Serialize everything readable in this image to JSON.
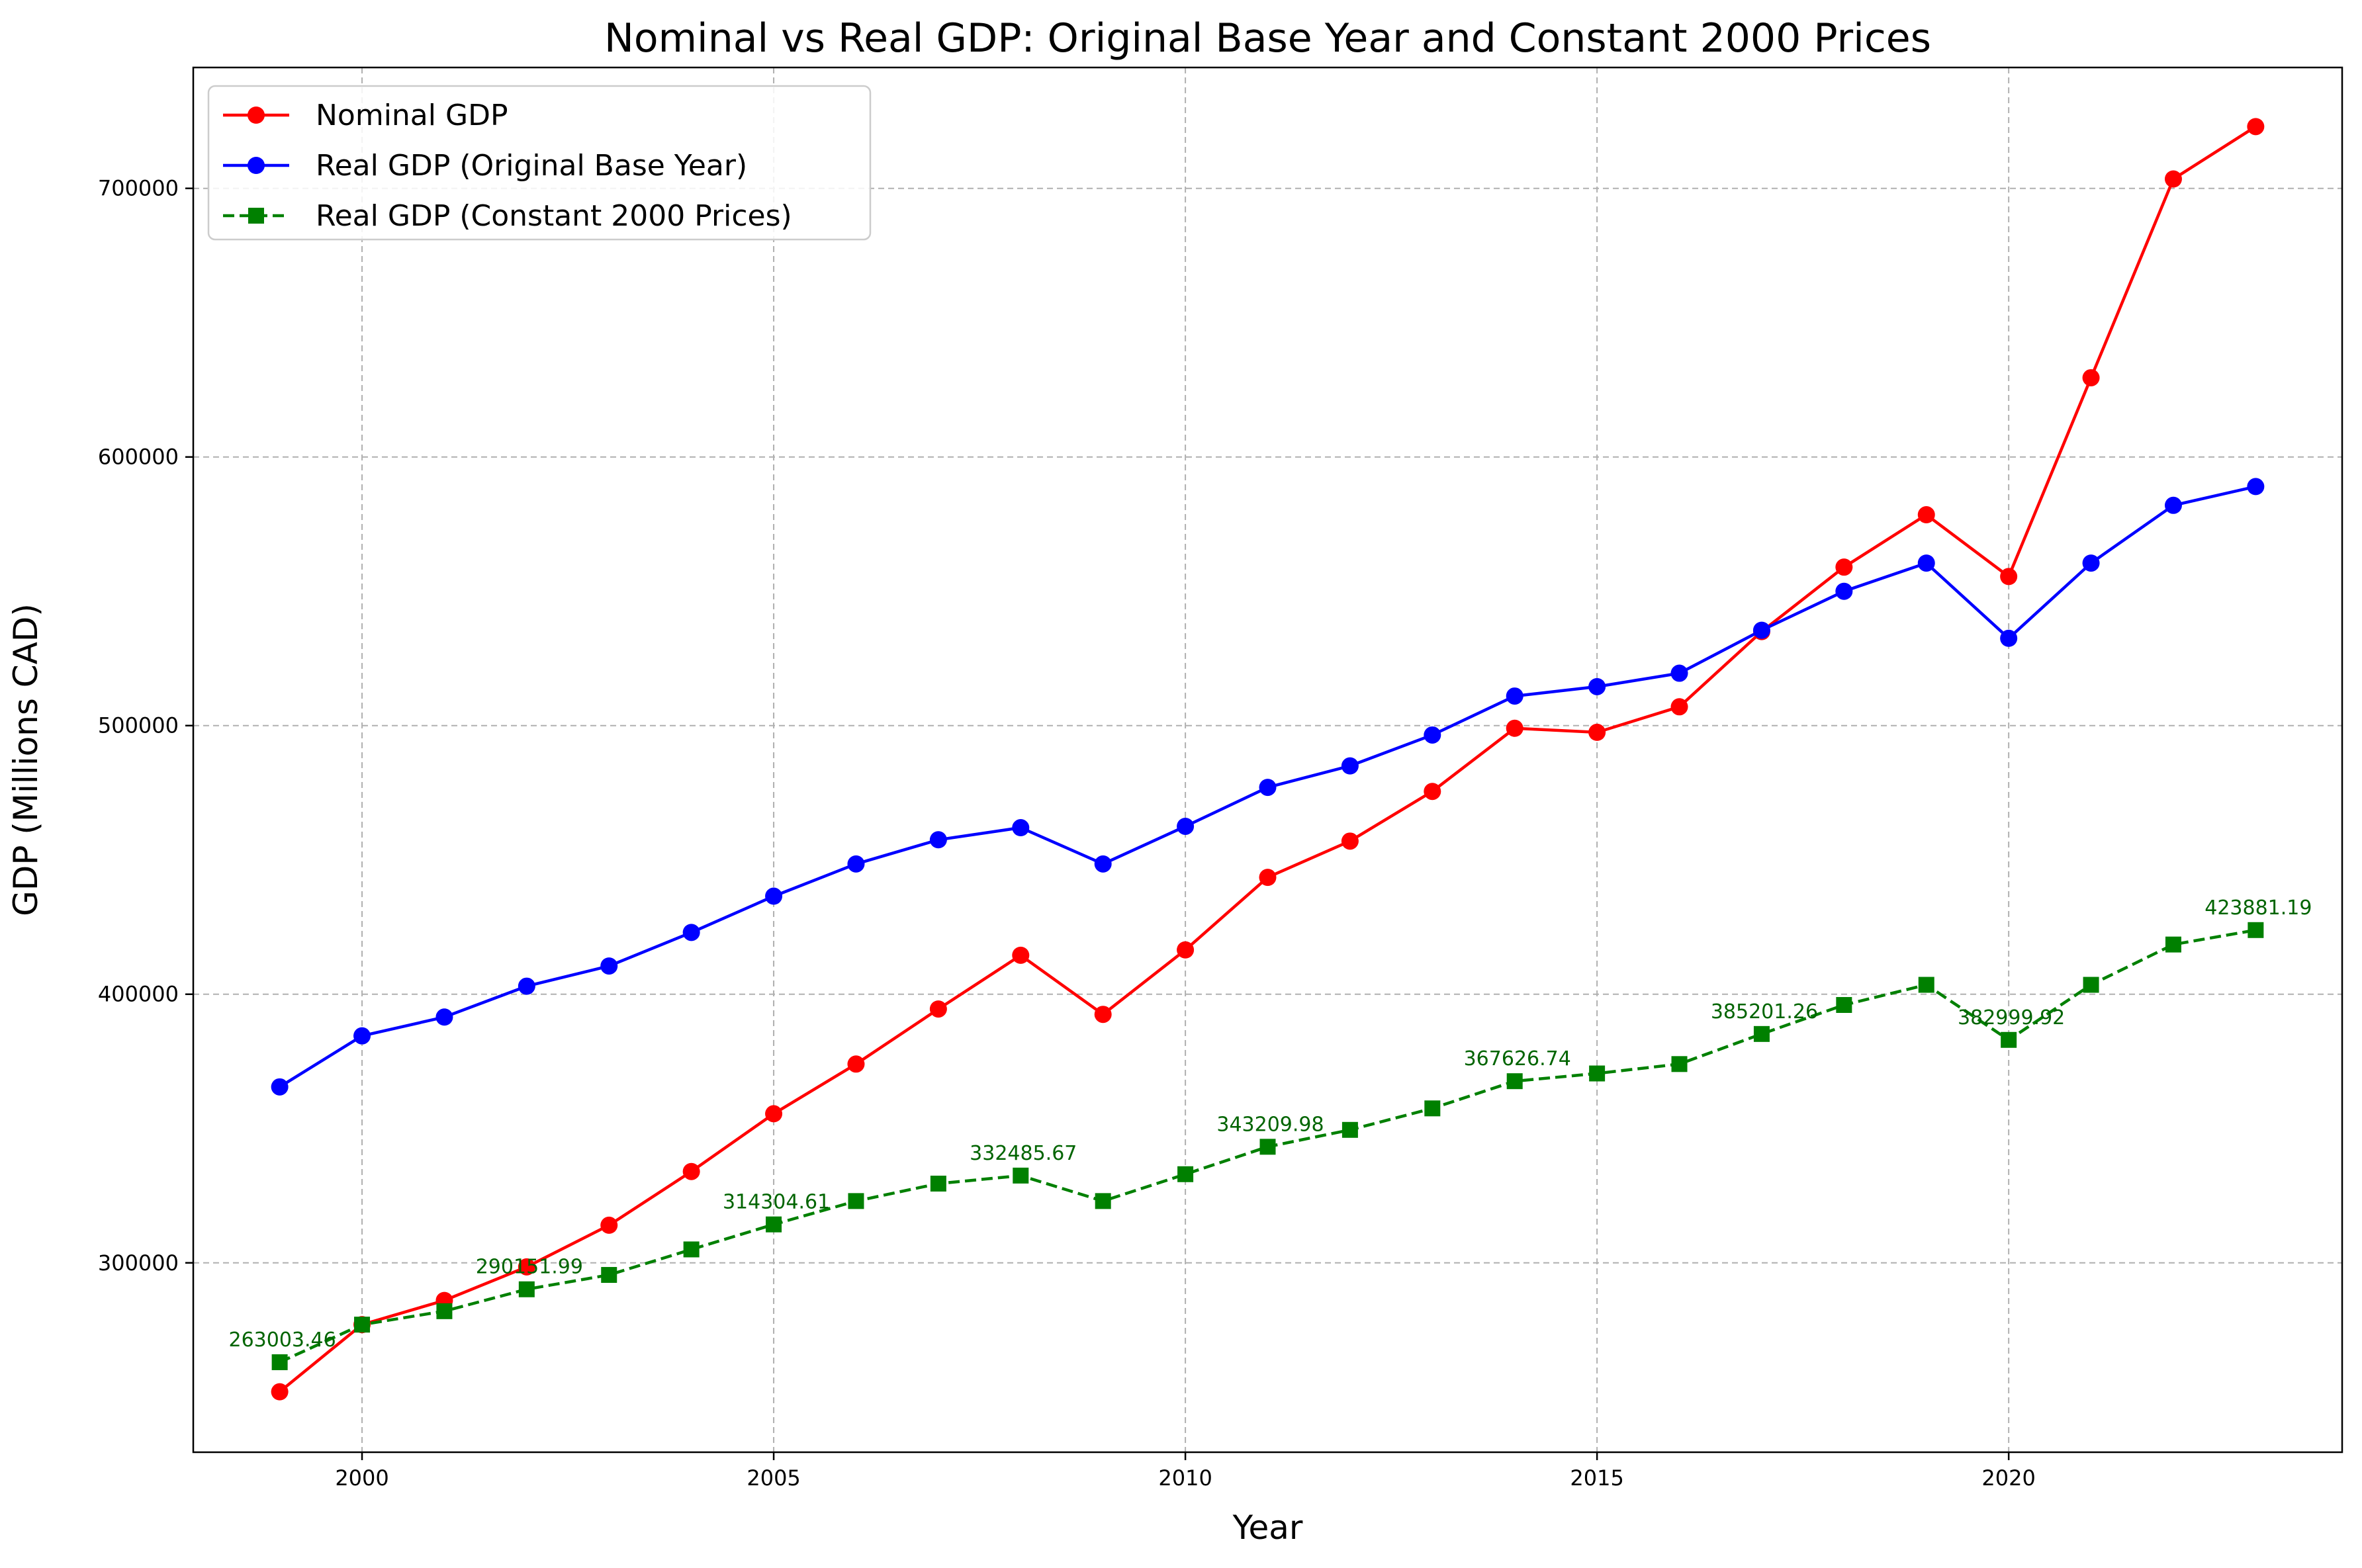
{
  "chart_data": {
    "type": "line",
    "title": "Nominal vs Real GDP: Original Base Year and Constant 2000 Prices",
    "xlabel": "Year",
    "ylabel": "GDP (Millions CAD)",
    "xlim": [
      1997.95,
      2024.05
    ],
    "ylim": [
      229500,
      745000
    ],
    "xticks": [
      2000,
      2005,
      2010,
      2015,
      2020
    ],
    "yticks": [
      300000,
      400000,
      500000,
      600000,
      700000
    ],
    "grid": true,
    "legend_position": "top-left",
    "x": [
      1999,
      2000,
      2001,
      2002,
      2003,
      2004,
      2005,
      2006,
      2007,
      2008,
      2009,
      2010,
      2011,
      2012,
      2013,
      2014,
      2015,
      2016,
      2017,
      2018,
      2019,
      2020,
      2021,
      2022,
      2023
    ],
    "series": [
      {
        "name": "Nominal GDP",
        "color": "#ff0000",
        "marker": "circle",
        "linestyle": "solid",
        "values": [
          252000,
          277000,
          286000,
          298500,
          314000,
          334000,
          355500,
          374000,
          394500,
          414500,
          392500,
          416500,
          443500,
          457000,
          475500,
          499000,
          497500,
          507000,
          535000,
          559000,
          578500,
          555500,
          629500,
          703500,
          723000
        ]
      },
      {
        "name": "Real GDP (Original Base Year)",
        "color": "#0000ff",
        "marker": "circle",
        "linestyle": "solid",
        "values": [
          365500,
          384500,
          391500,
          403000,
          410500,
          423000,
          436500,
          448500,
          457500,
          462000,
          448500,
          462500,
          477000,
          485000,
          496500,
          511000,
          514500,
          519500,
          535500,
          550000,
          560500,
          532500,
          560500,
          582000,
          589000
        ]
      },
      {
        "name": "Real GDP (Constant 2000 Prices)",
        "color": "#008000",
        "marker": "square",
        "linestyle": "dashed",
        "values": [
          263003.46,
          277000,
          282000,
          290151.99,
          295500,
          305000,
          314304.61,
          323000,
          329500,
          332485.67,
          323000,
          333000,
          343209.98,
          349500,
          357500,
          367626.74,
          370500,
          374000,
          385201.26,
          396000,
          403500,
          382999.92,
          403500,
          418500,
          423881.19
        ]
      }
    ],
    "annotations": [
      {
        "x": 1999,
        "y": 263003.46,
        "text": "263003.46"
      },
      {
        "x": 2002,
        "y": 290151.99,
        "text": "290151.99"
      },
      {
        "x": 2005,
        "y": 314304.61,
        "text": "314304.61"
      },
      {
        "x": 2008,
        "y": 332485.67,
        "text": "332485.67"
      },
      {
        "x": 2011,
        "y": 343209.98,
        "text": "343209.98"
      },
      {
        "x": 2014,
        "y": 367626.74,
        "text": "367626.74"
      },
      {
        "x": 2017,
        "y": 385201.26,
        "text": "385201.26"
      },
      {
        "x": 2020,
        "y": 382999.92,
        "text": "382999.92"
      },
      {
        "x": 2023,
        "y": 423881.19,
        "text": "423881.19"
      }
    ]
  }
}
